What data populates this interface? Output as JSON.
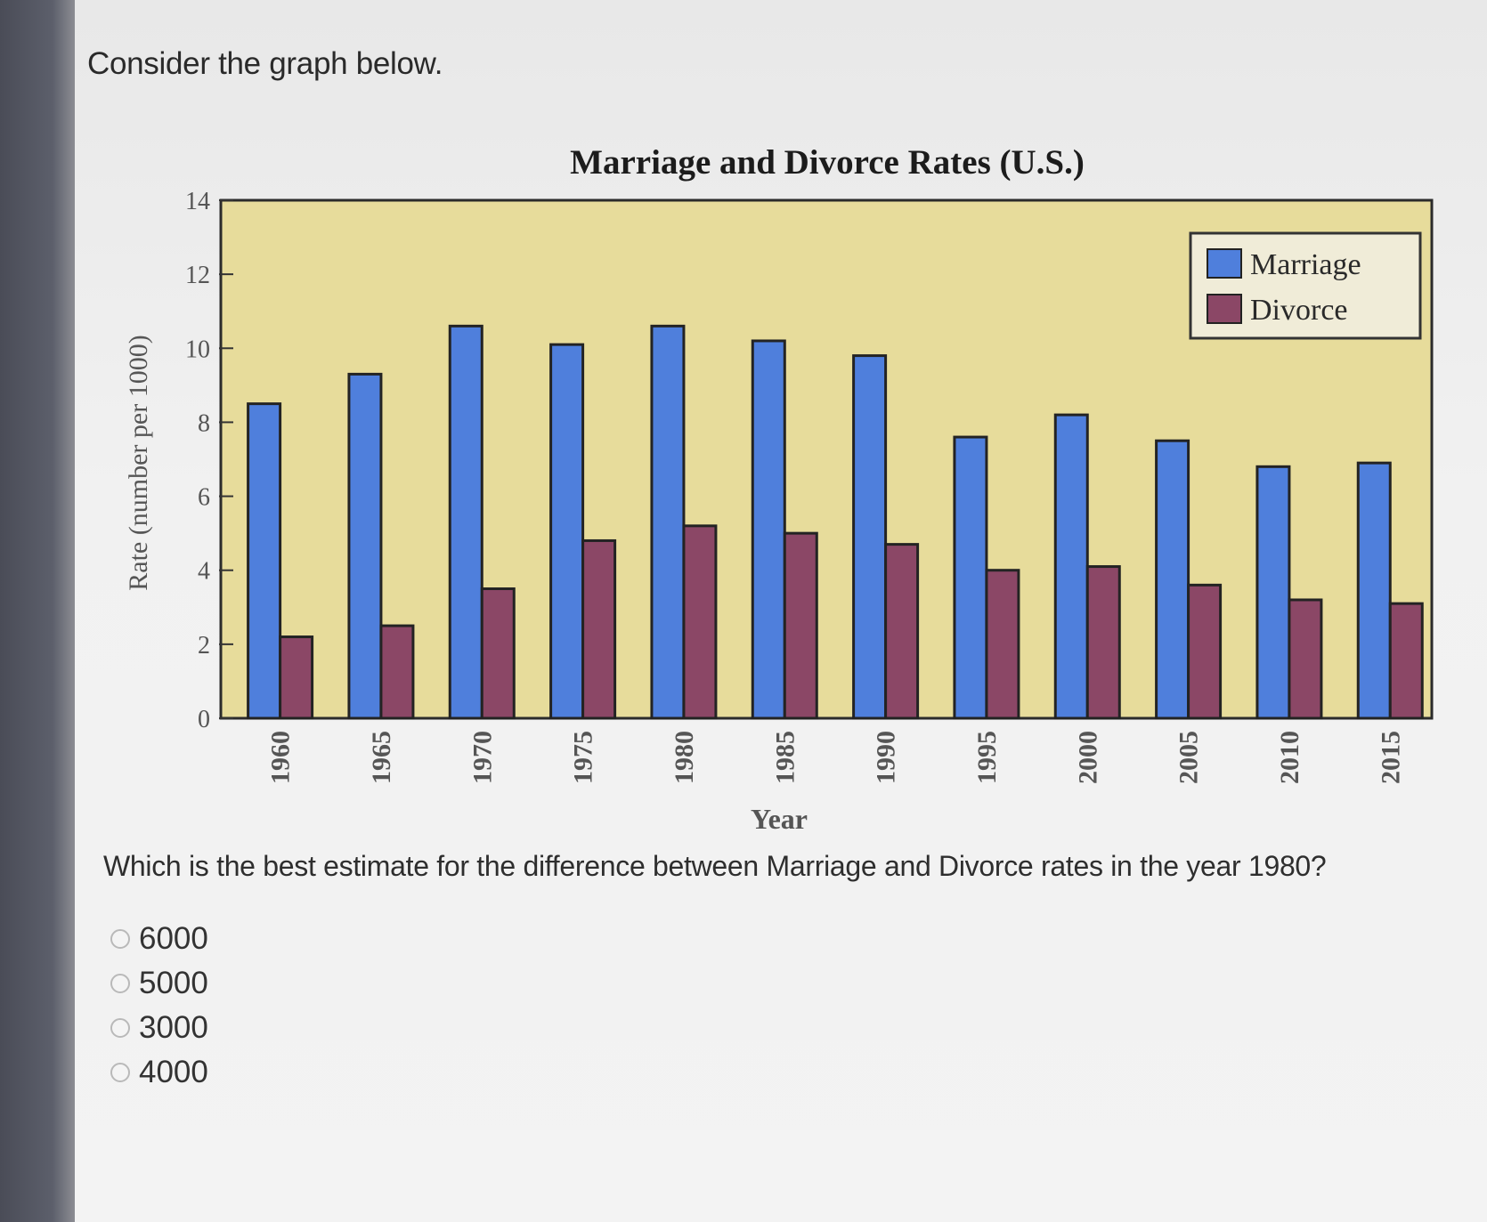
{
  "prompt": "Consider the graph below.",
  "question": "Which is the best estimate for the difference between Marriage and Divorce rates in the year 1980?",
  "choices": [
    "6000",
    "5000",
    "3000",
    "4000"
  ],
  "colors": {
    "plot_background": "#e7dc9b",
    "marriage": "#4f7fdc",
    "divorce": "#8b4766",
    "bar_outline": "#232323"
  },
  "chart_data": {
    "type": "bar",
    "title": "Marriage and Divorce Rates (U.S.)",
    "xlabel": "Year",
    "ylabel": "Rate (number per 1000)",
    "ylim": [
      0,
      14
    ],
    "yticks": [
      0,
      2,
      4,
      6,
      8,
      10,
      12,
      14
    ],
    "categories": [
      "1960",
      "1965",
      "1970",
      "1975",
      "1980",
      "1985",
      "1990",
      "1995",
      "2000",
      "2005",
      "2010",
      "2015"
    ],
    "series": [
      {
        "name": "Marriage",
        "values": [
          8.5,
          9.3,
          10.6,
          10.1,
          10.6,
          10.2,
          9.8,
          7.6,
          8.2,
          7.5,
          6.8,
          6.9
        ]
      },
      {
        "name": "Divorce",
        "values": [
          2.2,
          2.5,
          3.5,
          4.8,
          5.2,
          5.0,
          4.7,
          4.0,
          4.1,
          3.6,
          3.2,
          3.1
        ]
      }
    ],
    "legend": "top-right",
    "grid": false
  }
}
